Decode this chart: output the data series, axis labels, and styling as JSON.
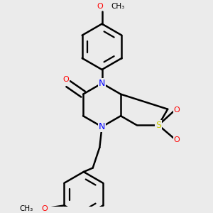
{
  "background_color": "#ebebeb",
  "bond_color": "#000000",
  "bond_width": 1.8,
  "atom_colors": {
    "N": "#0000ff",
    "O": "#ff0000",
    "S": "#cccc00",
    "C": "#000000"
  },
  "figsize": [
    3.0,
    3.0
  ],
  "dpi": 100
}
